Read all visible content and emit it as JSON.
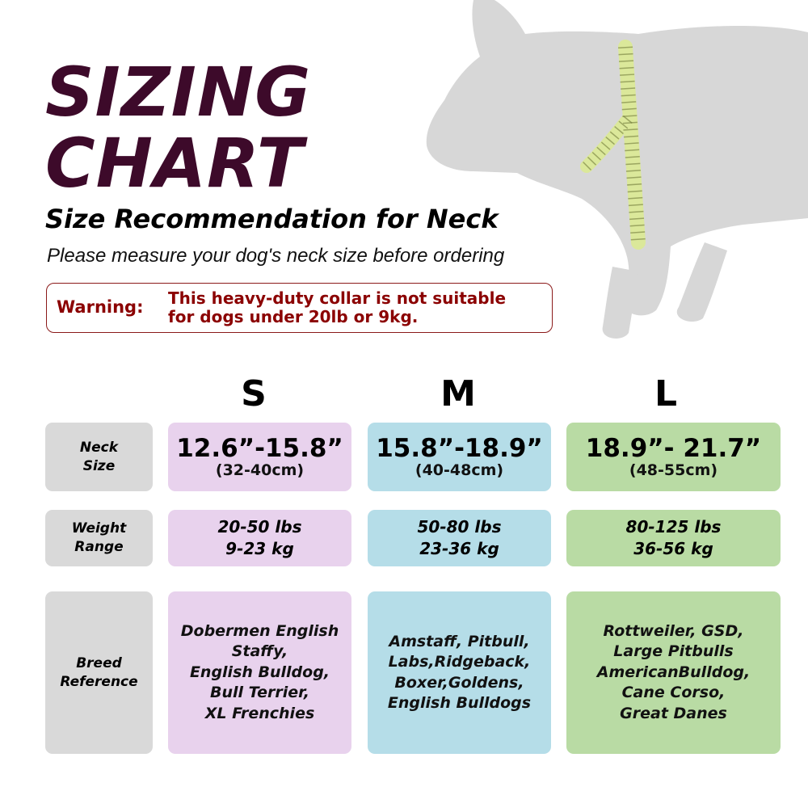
{
  "title": {
    "line1": "SIZING",
    "line2": "CHART"
  },
  "subtitle": "Size Recommendation for Neck",
  "instruction": "Please measure your dog's neck size before ordering",
  "warning": {
    "label": "Warning:",
    "text": "This heavy-duty collar is not suitable\nfor dogs under 20lb or 9kg."
  },
  "row_labels": {
    "neck": "Neck\nSize",
    "weight": "Weight\nRange",
    "breed": "Breed\nReference"
  },
  "sizes": [
    {
      "letter": "S",
      "neck_in": "12.6”-15.8”",
      "neck_cm": "(32-40cm)",
      "weight_lbs": "20-50 lbs",
      "weight_kg": "9-23 kg",
      "breeds": "Dobermen English\nStaffy,\nEnglish Bulldog,\nBull Terrier,\nXL Frenchies"
    },
    {
      "letter": "M",
      "neck_in": "15.8”-18.9”",
      "neck_cm": "(40-48cm)",
      "weight_lbs": "50-80 lbs",
      "weight_kg": "23-36 kg",
      "breeds": "Amstaff, Pitbull,\nLabs,Ridgeback,\nBoxer,Goldens,\nEnglish Bulldogs"
    },
    {
      "letter": "L",
      "neck_in": "18.9”- 21.7”",
      "neck_cm": "(48-55cm)",
      "weight_lbs": "80-125 lbs",
      "weight_kg": "36-56 kg",
      "breeds": "Rottweiler, GSD,\nLarge Pitbulls\nAmericanBulldog,\nCane Corso,\nGreat Danes"
    }
  ],
  "colors": {
    "title": "#3d0a2a",
    "warning": "#8b0000",
    "dog": "#d7d7d7",
    "tape": "#dbe89a",
    "label_cell": "#d9d9d9",
    "size_s": "#e8d2ed",
    "size_m": "#b5dde8",
    "size_l": "#b9dba4"
  },
  "illustration": {
    "subject": "dog-silhouette-icon",
    "accessory": "measuring-tape-icon"
  }
}
